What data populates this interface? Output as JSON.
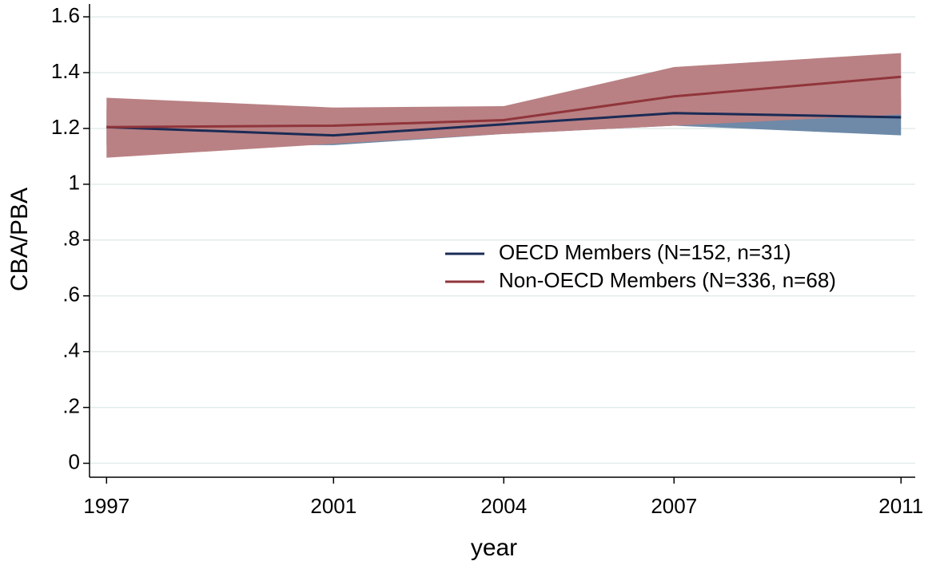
{
  "chart_data": {
    "type": "line",
    "x": [
      1997,
      2001,
      2004,
      2007,
      2011
    ],
    "series": [
      {
        "name": "OECD Members (N=152, n=31)",
        "color": "#1a2b55",
        "band_color": "#6e8aa8",
        "values": [
          1.205,
          1.175,
          1.215,
          1.255,
          1.24
        ],
        "lower": [
          1.14,
          1.14,
          1.18,
          1.21,
          1.175
        ],
        "upper": [
          1.27,
          1.21,
          1.25,
          1.3,
          1.305
        ]
      },
      {
        "name": "Non-OECD Members (N=336, n=68)",
        "color": "#90353b",
        "band_color": "#b98184",
        "values": [
          1.205,
          1.21,
          1.23,
          1.315,
          1.385
        ],
        "lower": [
          1.095,
          1.145,
          1.18,
          1.21,
          1.25
        ],
        "upper": [
          1.31,
          1.275,
          1.28,
          1.42,
          1.47
        ]
      }
    ],
    "x_label": "year",
    "y_label": "CBA/PBA",
    "xlim": [
      1996.7,
      2011.25
    ],
    "ylim": [
      -0.05,
      1.646
    ],
    "xticks": [
      1997,
      2001,
      2004,
      2007,
      2011
    ],
    "yticks": [
      0,
      {
        "value": 0.2,
        "label": ".2"
      },
      {
        "value": 0.4,
        "label": ".4"
      },
      {
        "value": 0.6,
        "label": ".6"
      },
      {
        "value": 0.8,
        "label": ".8"
      },
      1,
      1.2,
      1.4,
      1.6
    ],
    "grid": true,
    "legend": "right"
  }
}
